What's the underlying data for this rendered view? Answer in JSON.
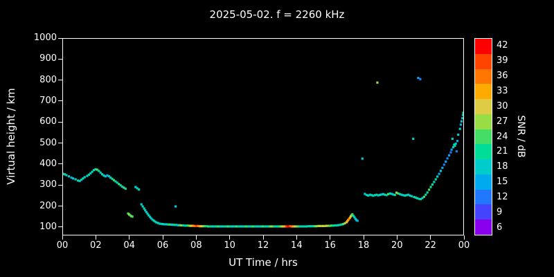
{
  "figure": {
    "colors": {
      "background": "#000000",
      "axis": "#ffffff",
      "text": "#ffffff"
    }
  },
  "chart_data": {
    "type": "scatter",
    "title": "2025-05-02. f = 2260 kHz",
    "xlabel": "UT Time / hrs",
    "ylabel": "Virtual height / km",
    "xlim": [
      0,
      24
    ],
    "ylim": [
      60,
      1000
    ],
    "grid": false,
    "xticks": {
      "values": [
        0,
        2,
        4,
        6,
        8,
        10,
        12,
        14,
        16,
        18,
        20,
        22,
        24
      ],
      "labels": [
        "00",
        "02",
        "04",
        "06",
        "08",
        "10",
        "12",
        "14",
        "16",
        "18",
        "20",
        "22",
        "00"
      ]
    },
    "yticks": {
      "values": [
        100,
        200,
        300,
        400,
        500,
        600,
        700,
        800,
        900,
        1000
      ],
      "labels": [
        "100",
        "200",
        "300",
        "400",
        "500",
        "600",
        "700",
        "800",
        "900",
        "1000"
      ]
    },
    "colorbar": {
      "label": "SNR / dB",
      "tick_values": [
        42,
        39,
        36,
        33,
        30,
        27,
        24,
        21,
        18,
        15,
        12,
        9,
        6
      ],
      "stops": [
        {
          "value": 6,
          "color": "#8800ee"
        },
        {
          "value": 9,
          "color": "#4444ff"
        },
        {
          "value": 12,
          "color": "#2277ff"
        },
        {
          "value": 15,
          "color": "#00aaee"
        },
        {
          "value": 18,
          "color": "#00cccc"
        },
        {
          "value": 21,
          "color": "#00dd99"
        },
        {
          "value": 24,
          "color": "#44dd66"
        },
        {
          "value": 27,
          "color": "#99dd44"
        },
        {
          "value": 30,
          "color": "#ddcc44"
        },
        {
          "value": 33,
          "color": "#ffaa00"
        },
        {
          "value": 36,
          "color": "#ff7700"
        },
        {
          "value": 39,
          "color": "#ff4400"
        },
        {
          "value": 42,
          "color": "#ff0000"
        }
      ]
    },
    "points": [
      [
        0.0,
        352,
        18
      ],
      [
        0.1,
        350,
        21
      ],
      [
        0.2,
        346,
        18
      ],
      [
        0.35,
        340,
        18
      ],
      [
        0.5,
        334,
        15
      ],
      [
        0.6,
        330,
        18
      ],
      [
        0.75,
        326,
        18
      ],
      [
        0.9,
        320,
        21
      ],
      [
        1.0,
        318,
        18
      ],
      [
        1.1,
        324,
        18
      ],
      [
        1.2,
        330,
        21
      ],
      [
        1.3,
        336,
        18
      ],
      [
        1.45,
        342,
        18
      ],
      [
        1.55,
        348,
        21
      ],
      [
        1.65,
        355,
        18
      ],
      [
        1.75,
        362,
        21
      ],
      [
        1.85,
        370,
        18
      ],
      [
        1.95,
        374,
        21
      ],
      [
        2.05,
        372,
        24
      ],
      [
        2.15,
        366,
        21
      ],
      [
        2.25,
        358,
        18
      ],
      [
        2.35,
        350,
        21
      ],
      [
        2.45,
        344,
        18
      ],
      [
        2.55,
        340,
        18
      ],
      [
        2.65,
        345,
        15
      ],
      [
        2.75,
        341,
        18
      ],
      [
        2.85,
        334,
        18
      ],
      [
        2.95,
        328,
        21
      ],
      [
        3.05,
        322,
        24
      ],
      [
        3.15,
        316,
        21
      ],
      [
        3.25,
        310,
        18
      ],
      [
        3.35,
        303,
        24
      ],
      [
        3.45,
        297,
        21
      ],
      [
        3.55,
        291,
        18
      ],
      [
        3.65,
        286,
        24
      ],
      [
        3.75,
        281,
        21
      ],
      [
        3.9,
        162,
        24
      ],
      [
        3.97,
        157,
        27
      ],
      [
        4.03,
        153,
        24
      ],
      [
        4.1,
        149,
        27
      ],
      [
        4.16,
        147,
        24
      ],
      [
        4.35,
        289,
        18
      ],
      [
        4.45,
        283,
        18
      ],
      [
        4.55,
        277,
        21
      ],
      [
        4.7,
        206,
        18
      ],
      [
        4.78,
        196,
        18
      ],
      [
        4.86,
        186,
        21
      ],
      [
        4.93,
        177,
        18
      ],
      [
        5.0,
        169,
        18
      ],
      [
        5.07,
        161,
        18
      ],
      [
        5.14,
        153,
        21
      ],
      [
        5.21,
        146,
        18
      ],
      [
        5.28,
        139,
        18
      ],
      [
        5.36,
        133,
        18
      ],
      [
        5.44,
        128,
        21
      ],
      [
        5.52,
        123,
        18
      ],
      [
        5.6,
        119,
        18
      ],
      [
        5.7,
        116,
        21
      ],
      [
        5.8,
        113,
        18
      ],
      [
        5.9,
        112,
        18
      ],
      [
        6.0,
        111,
        21
      ],
      [
        6.1,
        110,
        18
      ],
      [
        6.2,
        110,
        18
      ],
      [
        6.3,
        109,
        21
      ],
      [
        6.4,
        109,
        24
      ],
      [
        6.5,
        108,
        18
      ],
      [
        6.6,
        108,
        18
      ],
      [
        6.7,
        107,
        21
      ],
      [
        6.75,
        196,
        18
      ],
      [
        6.8,
        107,
        18
      ],
      [
        6.9,
        106,
        18
      ],
      [
        7.0,
        106,
        24
      ],
      [
        7.1,
        105,
        27
      ],
      [
        7.2,
        105,
        21
      ],
      [
        7.3,
        104,
        18
      ],
      [
        7.4,
        104,
        21
      ],
      [
        7.5,
        104,
        24
      ],
      [
        7.6,
        103,
        27
      ],
      [
        7.7,
        103,
        30
      ],
      [
        7.8,
        103,
        33
      ],
      [
        7.9,
        102,
        36
      ],
      [
        8.0,
        102,
        39
      ],
      [
        8.1,
        102,
        36
      ],
      [
        8.2,
        101,
        33
      ],
      [
        8.3,
        101,
        30
      ],
      [
        8.4,
        101,
        27
      ],
      [
        8.5,
        101,
        24
      ],
      [
        8.6,
        101,
        21
      ],
      [
        8.7,
        100,
        24
      ],
      [
        8.8,
        100,
        21
      ],
      [
        8.9,
        100,
        18
      ],
      [
        9.0,
        100,
        21
      ],
      [
        9.1,
        100,
        18
      ],
      [
        9.2,
        100,
        21
      ],
      [
        9.3,
        100,
        24
      ],
      [
        9.4,
        100,
        21
      ],
      [
        9.5,
        100,
        18
      ],
      [
        9.6,
        100,
        21
      ],
      [
        9.7,
        100,
        18
      ],
      [
        9.8,
        100,
        21
      ],
      [
        9.9,
        100,
        24
      ],
      [
        10.0,
        100,
        21
      ],
      [
        10.1,
        100,
        18
      ],
      [
        10.2,
        100,
        21
      ],
      [
        10.3,
        100,
        18
      ],
      [
        10.4,
        100,
        24
      ],
      [
        10.5,
        100,
        21
      ],
      [
        10.6,
        100,
        18
      ],
      [
        10.7,
        100,
        21
      ],
      [
        10.8,
        100,
        18
      ],
      [
        10.9,
        100,
        21
      ],
      [
        11.0,
        100,
        24
      ],
      [
        11.1,
        100,
        21
      ],
      [
        11.2,
        100,
        18
      ],
      [
        11.3,
        100,
        21
      ],
      [
        11.4,
        100,
        24
      ],
      [
        11.5,
        100,
        21
      ],
      [
        11.6,
        100,
        18
      ],
      [
        11.7,
        100,
        21
      ],
      [
        11.8,
        100,
        18
      ],
      [
        11.9,
        100,
        21
      ],
      [
        12.0,
        100,
        24
      ],
      [
        12.1,
        100,
        21
      ],
      [
        12.2,
        100,
        18
      ],
      [
        12.3,
        100,
        21
      ],
      [
        12.4,
        100,
        24
      ],
      [
        12.5,
        100,
        27
      ],
      [
        12.6,
        100,
        24
      ],
      [
        12.7,
        100,
        21
      ],
      [
        12.8,
        100,
        18
      ],
      [
        12.9,
        100,
        21
      ],
      [
        13.0,
        100,
        24
      ],
      [
        13.1,
        100,
        27
      ],
      [
        13.2,
        100,
        30
      ],
      [
        13.3,
        100,
        33
      ],
      [
        13.4,
        100,
        39
      ],
      [
        13.5,
        100,
        42
      ],
      [
        13.6,
        101,
        39
      ],
      [
        13.7,
        100,
        36
      ],
      [
        13.8,
        100,
        33
      ],
      [
        13.9,
        100,
        30
      ],
      [
        14.0,
        100,
        27
      ],
      [
        14.1,
        100,
        24
      ],
      [
        14.2,
        100,
        21
      ],
      [
        14.3,
        100,
        18
      ],
      [
        14.4,
        100,
        21
      ],
      [
        14.5,
        100,
        18
      ],
      [
        14.6,
        100,
        21
      ],
      [
        14.7,
        101,
        18
      ],
      [
        14.8,
        101,
        21
      ],
      [
        14.9,
        101,
        18
      ],
      [
        15.0,
        101,
        21
      ],
      [
        15.1,
        101,
        24
      ],
      [
        15.2,
        101,
        27
      ],
      [
        15.3,
        102,
        27
      ],
      [
        15.4,
        102,
        30
      ],
      [
        15.5,
        102,
        27
      ],
      [
        15.6,
        102,
        30
      ],
      [
        15.7,
        102,
        27
      ],
      [
        15.8,
        103,
        30
      ],
      [
        15.9,
        103,
        27
      ],
      [
        16.0,
        103,
        24
      ],
      [
        16.1,
        104,
        24
      ],
      [
        16.2,
        104,
        21
      ],
      [
        16.3,
        105,
        21
      ],
      [
        16.4,
        105,
        18
      ],
      [
        16.5,
        106,
        21
      ],
      [
        16.6,
        107,
        18
      ],
      [
        16.7,
        109,
        21
      ],
      [
        16.8,
        111,
        24
      ],
      [
        16.9,
        115,
        27
      ],
      [
        17.0,
        120,
        30
      ],
      [
        17.05,
        125,
        33
      ],
      [
        17.1,
        131,
        33
      ],
      [
        17.15,
        136,
        36
      ],
      [
        17.2,
        141,
        33
      ],
      [
        17.25,
        148,
        30
      ],
      [
        17.3,
        153,
        27
      ],
      [
        17.35,
        158,
        24
      ],
      [
        17.42,
        150,
        21
      ],
      [
        17.48,
        143,
        18
      ],
      [
        17.54,
        136,
        18
      ],
      [
        17.6,
        130,
        18
      ],
      [
        17.66,
        127,
        15
      ],
      [
        17.95,
        425,
        18
      ],
      [
        18.1,
        256,
        18
      ],
      [
        18.2,
        251,
        18
      ],
      [
        18.3,
        248,
        21
      ],
      [
        18.4,
        252,
        18
      ],
      [
        18.5,
        250,
        21
      ],
      [
        18.6,
        247,
        18
      ],
      [
        18.7,
        250,
        18
      ],
      [
        18.8,
        252,
        21
      ],
      [
        18.85,
        790,
        27
      ],
      [
        18.9,
        249,
        18
      ],
      [
        19.0,
        251,
        21
      ],
      [
        19.1,
        253,
        18
      ],
      [
        19.2,
        255,
        18
      ],
      [
        19.3,
        252,
        21
      ],
      [
        19.4,
        250,
        18
      ],
      [
        19.5,
        255,
        24
      ],
      [
        19.6,
        258,
        21
      ],
      [
        19.7,
        256,
        18
      ],
      [
        19.8,
        253,
        18
      ],
      [
        19.9,
        251,
        21
      ],
      [
        20.0,
        262,
        27
      ],
      [
        20.1,
        258,
        24
      ],
      [
        20.2,
        255,
        21
      ],
      [
        20.3,
        252,
        18
      ],
      [
        20.4,
        250,
        18
      ],
      [
        20.5,
        248,
        18
      ],
      [
        20.6,
        250,
        21
      ],
      [
        20.7,
        252,
        18
      ],
      [
        20.8,
        248,
        18
      ],
      [
        20.9,
        245,
        18
      ],
      [
        21.0,
        520,
        18
      ],
      [
        21.05,
        241,
        21
      ],
      [
        21.15,
        238,
        18
      ],
      [
        21.25,
        235,
        21
      ],
      [
        21.3,
        812,
        15
      ],
      [
        21.42,
        806,
        12
      ],
      [
        21.35,
        232,
        18
      ],
      [
        21.45,
        231,
        21
      ],
      [
        21.55,
        236,
        18
      ],
      [
        21.65,
        242,
        24
      ],
      [
        21.75,
        252,
        21
      ],
      [
        21.85,
        263,
        21
      ],
      [
        21.95,
        276,
        24
      ],
      [
        22.05,
        289,
        21
      ],
      [
        22.15,
        301,
        21
      ],
      [
        22.25,
        313,
        18
      ],
      [
        22.35,
        326,
        21
      ],
      [
        22.45,
        339,
        18
      ],
      [
        22.55,
        352,
        15
      ],
      [
        22.65,
        366,
        18
      ],
      [
        22.75,
        381,
        15
      ],
      [
        22.85,
        396,
        12
      ],
      [
        22.95,
        411,
        15
      ],
      [
        23.05,
        426,
        12
      ],
      [
        23.15,
        441,
        15
      ],
      [
        23.25,
        455,
        12
      ],
      [
        23.3,
        468,
        15
      ],
      [
        23.35,
        520,
        18
      ],
      [
        23.4,
        480,
        18
      ],
      [
        23.45,
        492,
        18
      ],
      [
        23.5,
        487,
        21
      ],
      [
        23.55,
        497,
        18
      ],
      [
        23.6,
        460,
        12
      ],
      [
        23.65,
        510,
        15
      ],
      [
        23.7,
        540,
        18
      ],
      [
        23.8,
        568,
        18
      ],
      [
        23.85,
        588,
        15
      ],
      [
        23.9,
        604,
        18
      ],
      [
        23.95,
        619,
        18
      ],
      [
        23.98,
        634,
        18
      ],
      [
        24.0,
        645,
        21
      ]
    ]
  }
}
